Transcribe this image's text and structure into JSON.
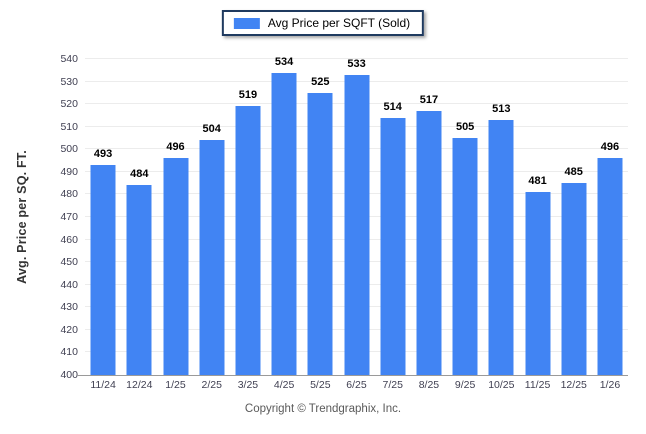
{
  "legend": {
    "label": "Avg Price per SQFT (Sold)",
    "swatch_color": "#4184F3"
  },
  "footer": {
    "text": "Copyright © Trendgraphix, Inc."
  },
  "colors": {
    "bar": "#4184F3",
    "gridline": "#ECECEC",
    "axis_line": "#9A9A9A",
    "tick_text": "#3F3F51",
    "value_label": "#000000",
    "legend_border": "#1F3A5F"
  },
  "chart_data": {
    "type": "bar",
    "title": "",
    "categories": [
      "11/24",
      "12/24",
      "1/25",
      "2/25",
      "3/25",
      "4/25",
      "5/25",
      "6/25",
      "7/25",
      "8/25",
      "9/25",
      "10/25",
      "11/25",
      "12/25",
      "1/26"
    ],
    "series": [
      {
        "name": "Avg Price per SQFT (Sold)",
        "color": "#4184F3",
        "values": [
          493,
          484,
          496,
          504,
          519,
          534,
          525,
          533,
          514,
          517,
          505,
          513,
          481,
          485,
          496
        ]
      }
    ],
    "xlabel": "",
    "ylabel": "Avg. Price per SQ. FT.",
    "ylim": [
      400,
      540
    ],
    "ytick_step": 10,
    "grid": true,
    "value_labels": true,
    "legend_position": "top-center"
  }
}
